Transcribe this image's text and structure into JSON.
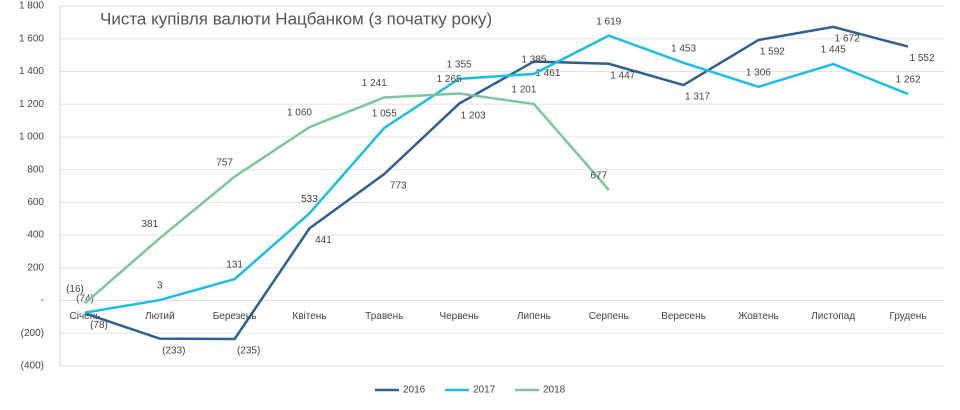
{
  "chart_data": {
    "type": "line",
    "title": "Чиста купівля валюти Нацбанком (з початку року)",
    "categories": [
      "Січень",
      "Лютий",
      "Березень",
      "Квітень",
      "Травень",
      "Червень",
      "Липень",
      "Серпень",
      "Вересень",
      "Жовтень",
      "Листопад",
      "Грудень"
    ],
    "series": [
      {
        "name": "2016",
        "color": "#2e5f93",
        "values": [
          -78,
          -233,
          -235,
          441,
          773,
          1203,
          1461,
          1447,
          1317,
          1592,
          1672,
          1552
        ],
        "value_labels": [
          "(78)",
          "(233)",
          "(235)",
          "441",
          "773",
          "1 203",
          "1 461",
          "1 447",
          "1 317",
          "1 592",
          "1 672",
          "1 552"
        ]
      },
      {
        "name": "2017",
        "color": "#1bbde6",
        "values": [
          -74,
          3,
          131,
          533,
          1055,
          1355,
          1385,
          1619,
          1453,
          1306,
          1445,
          1262
        ],
        "value_labels": [
          "(74)",
          "3",
          "131",
          "533",
          "1 055",
          "1 355",
          "1 385",
          "1 619",
          "1 453",
          "1 306",
          "1 445",
          "1 262"
        ]
      },
      {
        "name": "2018",
        "color": "#7cc79a",
        "values": [
          -16,
          381,
          757,
          1060,
          1241,
          1265,
          1201,
          677,
          null,
          null,
          null,
          null
        ],
        "value_labels": [
          "(16)",
          "381",
          "757",
          "1 060",
          "1 241",
          "1 265",
          "1 201",
          "677",
          null,
          null,
          null,
          null
        ]
      }
    ],
    "ylim": [
      -400,
      1800
    ],
    "yticks": [
      {
        "value": -400,
        "label": "(400)"
      },
      {
        "value": -200,
        "label": "(200)"
      },
      {
        "value": 0,
        "label": "-"
      },
      200,
      400,
      600,
      800,
      {
        "value": 1000,
        "label": "1 000"
      },
      {
        "value": 1200,
        "label": "1 200"
      },
      {
        "value": 1400,
        "label": "1 400"
      },
      {
        "value": 1600,
        "label": "1 600"
      },
      {
        "value": 1800,
        "label": "1 800"
      }
    ],
    "grid": true,
    "legend": "bottom"
  }
}
